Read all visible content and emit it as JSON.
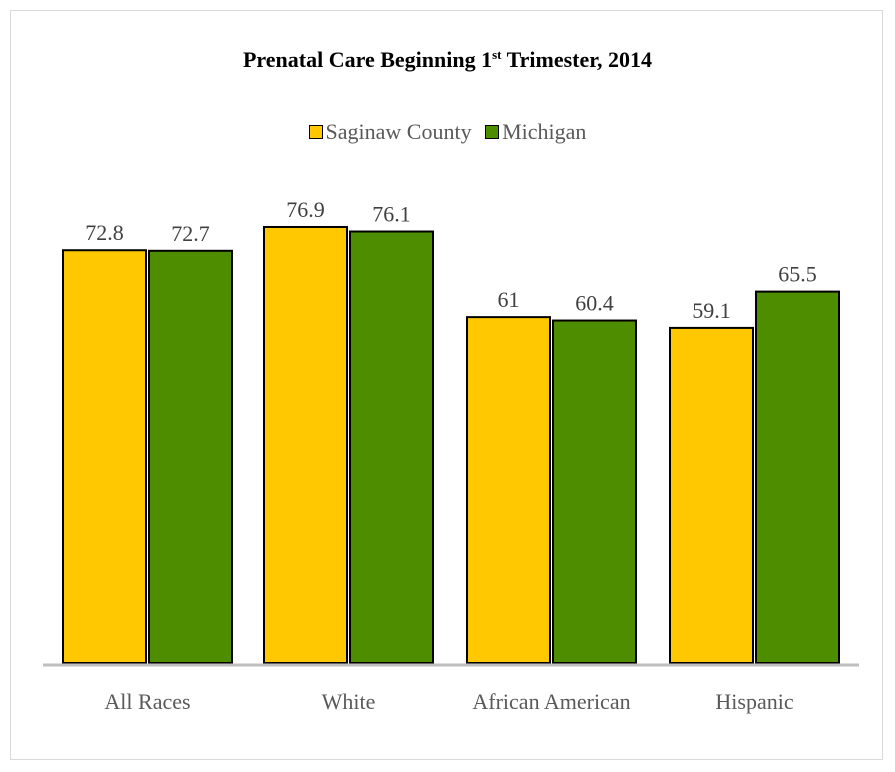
{
  "chart_data": {
    "type": "bar",
    "title_main": "Prenatal Care Beginning 1",
    "title_sup": "st",
    "title_end": " Trimester, 2014",
    "categories": [
      "All Races",
      "White",
      "African American",
      "Hispanic"
    ],
    "series": [
      {
        "name": "Saginaw County",
        "color": "#FFC800",
        "values": [
          72.8,
          76.9,
          61,
          59.1
        ]
      },
      {
        "name": "Michigan",
        "color": "#4E8C00",
        "values": [
          72.7,
          76.1,
          60.4,
          65.5
        ]
      }
    ],
    "value_labels": [
      [
        "72.8",
        "76.9",
        "61",
        "59.1"
      ],
      [
        "72.7",
        "76.1",
        "60.4",
        "65.5"
      ]
    ],
    "ylim": [
      0,
      100
    ],
    "grid": false,
    "legend_position": "top-center",
    "axis_color": "#BFBFBF"
  }
}
